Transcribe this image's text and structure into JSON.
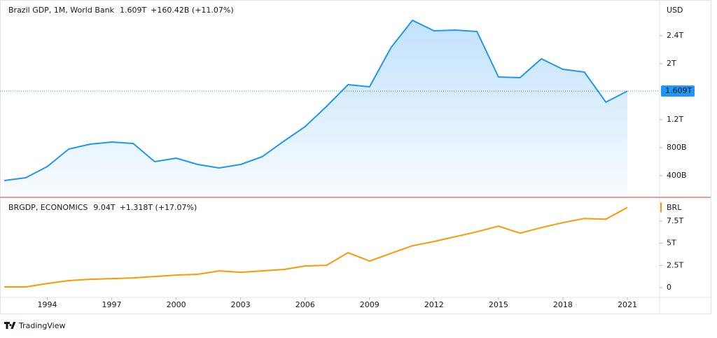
{
  "chart_data": [
    {
      "type": "area",
      "title": "Brazil GDP, 1M, World Bank",
      "last_value_label": "1.609T",
      "change_label": "+160.42B (+11.07%)",
      "unit_label": "USD",
      "color": "#2196f3",
      "x": [
        1992,
        1993,
        1994,
        1995,
        1996,
        1997,
        1998,
        1999,
        2000,
        2001,
        2002,
        2003,
        2004,
        2005,
        2006,
        2007,
        2008,
        2009,
        2010,
        2011,
        2012,
        2013,
        2014,
        2015,
        2016,
        2017,
        2018,
        2019,
        2020,
        2021
      ],
      "values": [
        330,
        370,
        530,
        780,
        850,
        880,
        860,
        600,
        650,
        560,
        510,
        560,
        670,
        890,
        1100,
        1390,
        1700,
        1670,
        2230,
        2620,
        2470,
        2480,
        2460,
        1810,
        1800,
        2070,
        1920,
        1880,
        1450,
        1609
      ],
      "xlim": [
        1991.8,
        2022.5
      ],
      "ylim": [
        90,
        2910
      ],
      "yticks": [
        {
          "value": 400,
          "label": "400B"
        },
        {
          "value": 800,
          "label": "800B"
        },
        {
          "value": 1200,
          "label": "1.2T"
        },
        {
          "value": 2000,
          "label": "2T"
        },
        {
          "value": 2400,
          "label": "2.4T"
        }
      ]
    },
    {
      "type": "line",
      "title": "BRGDP, ECONOMICS",
      "last_value_label": "9.04T",
      "change_label": "+1.318T (+17.07%)",
      "unit_label": "BRL",
      "color": "#ff9800",
      "x": [
        1992,
        1993,
        1994,
        1995,
        1996,
        1997,
        1998,
        1999,
        2000,
        2001,
        2002,
        2003,
        2004,
        2005,
        2006,
        2007,
        2008,
        2009,
        2010,
        2011,
        2012,
        2013,
        2014,
        2015,
        2016,
        2017,
        2018,
        2019,
        2020,
        2021
      ],
      "values": [
        0.08,
        0.08,
        0.47,
        0.79,
        0.94,
        1.02,
        1.1,
        1.26,
        1.42,
        1.5,
        1.89,
        1.73,
        1.89,
        2.05,
        2.44,
        2.52,
        3.94,
        2.99,
        3.86,
        4.72,
        5.2,
        5.75,
        6.3,
        6.93,
        6.14,
        6.77,
        7.32,
        7.8,
        7.72,
        9.04
      ],
      "xlim": [
        1991.8,
        2022.5
      ],
      "ylim": [
        -1.1,
        10.1
      ],
      "yticks": [
        0,
        {
          "value": 2.5,
          "label": "2.5T"
        },
        {
          "value": 5,
          "label": "5T"
        },
        {
          "value": 7.5,
          "label": "7.5T"
        }
      ],
      "xticks": [
        1994,
        1997,
        2000,
        2003,
        2006,
        2009,
        2012,
        2015,
        2018,
        2021
      ]
    }
  ],
  "footer": "TradingView"
}
